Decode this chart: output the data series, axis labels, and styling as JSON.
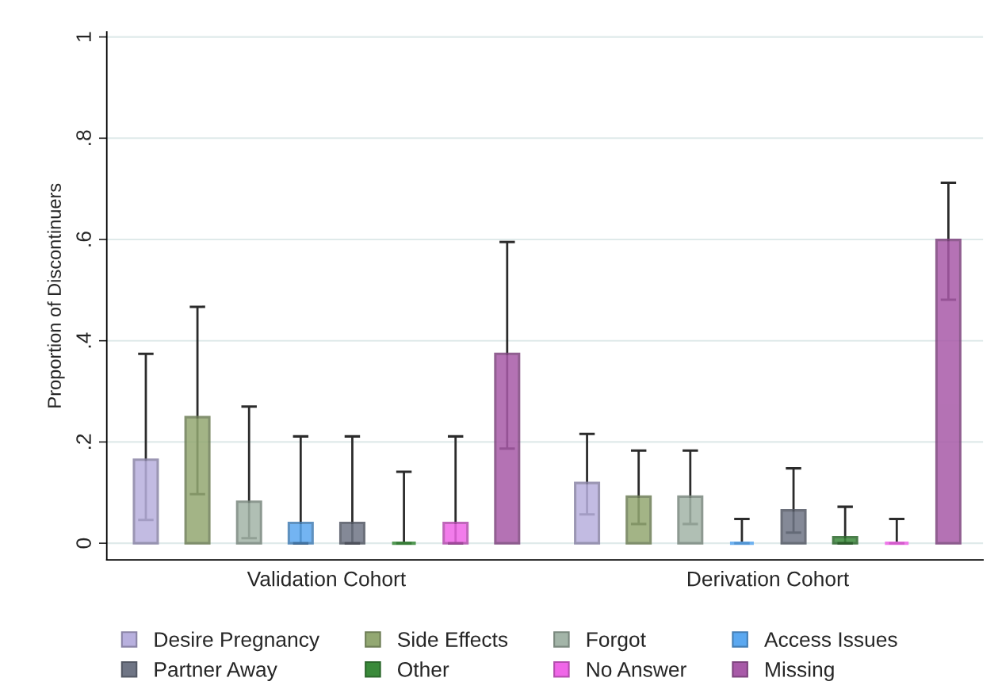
{
  "chart_data": {
    "type": "bar",
    "ylabel": "Proportion of Discontinuers",
    "categories": [
      "Validation Cohort",
      "Derivation Cohort"
    ],
    "series": [
      {
        "name": "Desire Pregnancy",
        "color": "#b8b0de",
        "values": [
          0.165,
          0.119
        ],
        "errors": [
          [
            0.046,
            0.374
          ],
          [
            0.057,
            0.216
          ]
        ]
      },
      {
        "name": "Side Effects",
        "color": "#93a872",
        "values": [
          0.249,
          0.092
        ],
        "errors": [
          [
            0.097,
            0.467
          ],
          [
            0.038,
            0.183
          ]
        ]
      },
      {
        "name": "Forgot",
        "color": "#a3b5a8",
        "values": [
          0.082,
          0.092
        ],
        "errors": [
          [
            0.01,
            0.27
          ],
          [
            0.038,
            0.183
          ]
        ]
      },
      {
        "name": "Access Issues",
        "color": "#5ba8f0",
        "values": [
          0.04,
          0
        ],
        "errors": [
          [
            0,
            0.211
          ],
          [
            0,
            0.048
          ]
        ]
      },
      {
        "name": "Partner Away",
        "color": "#6f7585",
        "values": [
          0.04,
          0.065
        ],
        "errors": [
          [
            0,
            0.211
          ],
          [
            0.021,
            0.148
          ]
        ]
      },
      {
        "name": "Other",
        "color": "#3a8a3a",
        "values": [
          0,
          0.012
        ],
        "errors": [
          [
            0,
            0.141
          ],
          [
            0,
            0.072
          ]
        ]
      },
      {
        "name": "No Answer",
        "color": "#f066e8",
        "values": [
          0.04,
          0
        ],
        "errors": [
          [
            0,
            0.211
          ],
          [
            0,
            0.048
          ]
        ]
      },
      {
        "name": "Missing",
        "color": "#a85aa8",
        "values": [
          0.374,
          0.599
        ],
        "errors": [
          [
            0.187,
            0.595
          ],
          [
            0.481,
            0.712
          ]
        ]
      }
    ],
    "ylim": [
      -0.033,
      1.01
    ],
    "yticks": [
      0,
      {
        "value": 0.2,
        "label": ".2"
      },
      {
        "value": 0.4,
        "label": ".4"
      },
      {
        "value": 0.6,
        "label": ".6"
      },
      {
        "value": 0.8,
        "label": ".8"
      },
      1
    ],
    "grid": "y",
    "legend": "bottom"
  }
}
